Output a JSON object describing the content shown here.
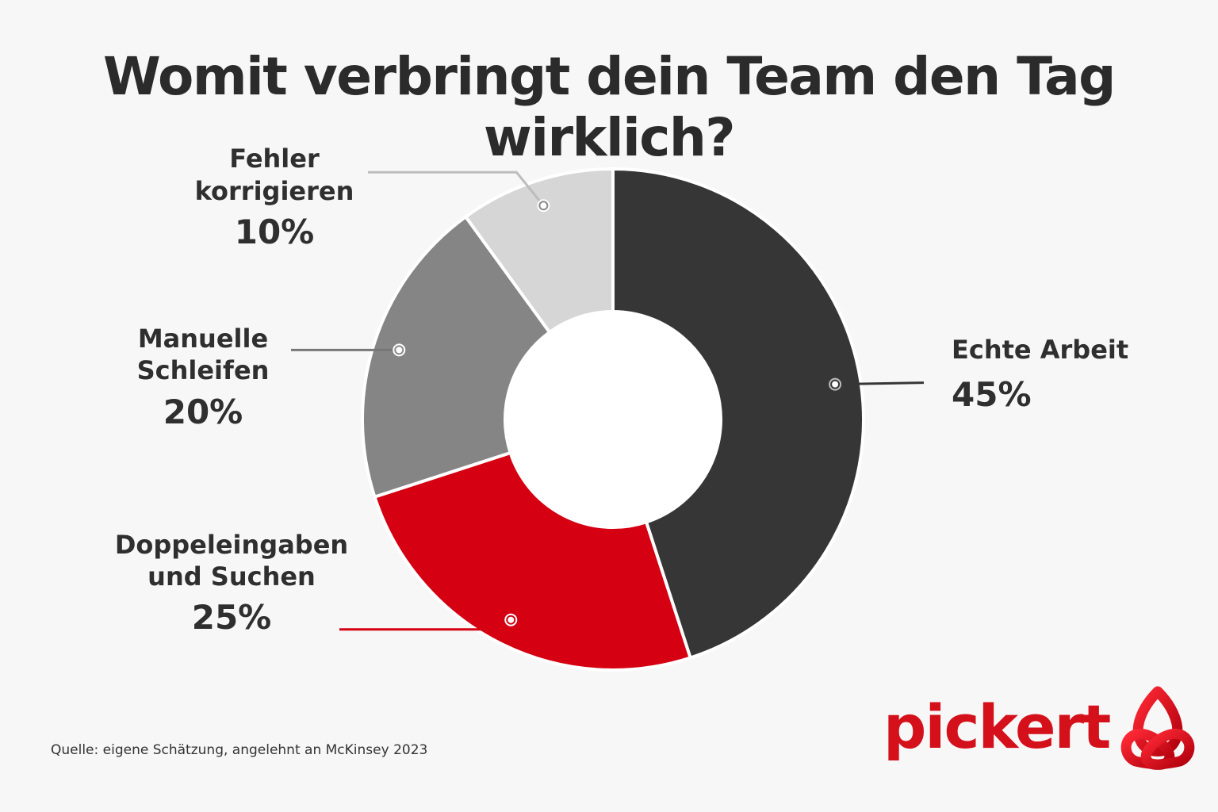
{
  "title": "Womit verbringt dein Team den Tag wirklich?",
  "source": "Quelle: eigene Schätzung, angelehnt an McKinsey 2023",
  "brand": {
    "name": "pickert",
    "color": "#d4101b",
    "icon": "pickert-trefoil-logo-icon"
  },
  "chart_data": {
    "type": "pie",
    "variant": "donut",
    "title": "Womit verbringt dein Team den Tag wirklich?",
    "slices": [
      {
        "label_lines": [
          "Echte Arbeit"
        ],
        "value": 45,
        "display": "45%",
        "color": "#363636",
        "leader_color": "#363636",
        "side": "right"
      },
      {
        "label_lines": [
          "Doppeleingaben",
          "und Suchen"
        ],
        "value": 25,
        "display": "25%",
        "color": "#d50012",
        "leader_color": "#d50012",
        "side": "left"
      },
      {
        "label_lines": [
          "Manuelle",
          "Schleifen"
        ],
        "value": 20,
        "display": "20%",
        "color": "#858585",
        "leader_color": "#777777",
        "side": "left"
      },
      {
        "label_lines": [
          "Fehler",
          "korrigieren"
        ],
        "value": 10,
        "display": "10%",
        "color": "#d6d6d6",
        "leader_color": "#bdbdbd",
        "side": "left"
      }
    ],
    "start": "top, clockwise",
    "legend": "none"
  }
}
